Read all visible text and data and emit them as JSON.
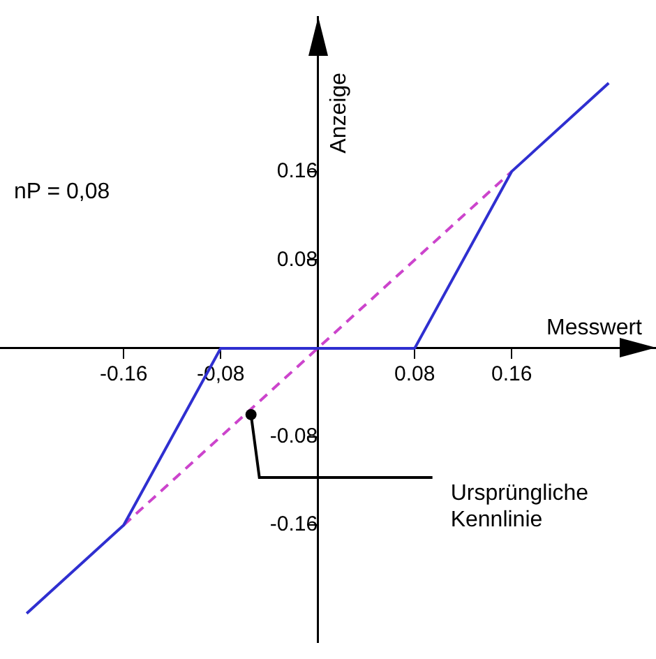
{
  "chart_data": {
    "type": "line",
    "xlabel": "Messwert",
    "ylabel": "Anzeige",
    "xlim": [
      -0.262,
      0.279
    ],
    "ylim": [
      -0.266,
      0.3
    ],
    "xticks": [
      -0.16,
      {
        "value": -0.08,
        "label": "-0,08"
      },
      0.08,
      0.16
    ],
    "yticks": [
      -0.16,
      -0.08,
      0.08,
      0.16
    ],
    "series": [
      {
        "color": "#2f2fd0",
        "x": [
          -0.24,
          -0.16,
          -0.08,
          0.08,
          0.16,
          0.24
        ],
        "values": [
          -0.24,
          -0.16,
          0,
          0,
          0.16,
          0.24
        ],
        "line_style": "solid"
      },
      {
        "color": "#cc44cc",
        "x": [
          -0.16,
          0.16
        ],
        "values": [
          -0.16,
          0.16
        ],
        "line_style": "dashed"
      }
    ],
    "annotations": [
      "nP = 0,08",
      {
        "text": "Ursprüngliche\nKennlinie",
        "x": -0.055,
        "y": -0.06
      }
    ],
    "grid": false,
    "legend": false,
    "marker": "none"
  }
}
